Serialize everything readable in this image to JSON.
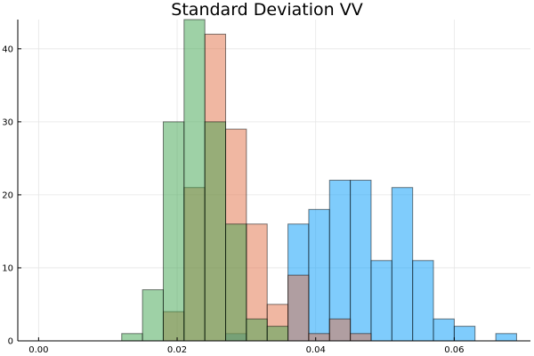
{
  "chart_data": {
    "type": "bar",
    "title": "Standard Deviation VV",
    "xlabel": "",
    "ylabel": "",
    "xlim": [
      -0.003,
      0.071
    ],
    "ylim": [
      0,
      44
    ],
    "bin_width": 0.003,
    "x_ticks": [
      0.0,
      0.02,
      0.04,
      0.06
    ],
    "x_tick_labels": [
      "0.00",
      "0.02",
      "0.04",
      "0.06"
    ],
    "y_ticks": [
      0,
      10,
      20,
      30,
      40
    ],
    "y_tick_labels": [
      "0",
      "10",
      "20",
      "30",
      "40"
    ],
    "grid": true,
    "legend": "none",
    "series": [
      {
        "color": "#009af9",
        "bins": [
          {
            "x0": 0.0,
            "value": 0
          },
          {
            "x0": 0.003,
            "value": 0
          },
          {
            "x0": 0.006,
            "value": 0
          },
          {
            "x0": 0.009,
            "value": 0
          },
          {
            "x0": 0.012,
            "value": 0
          },
          {
            "x0": 0.015,
            "value": 0
          },
          {
            "x0": 0.018,
            "value": 0
          },
          {
            "x0": 0.021,
            "value": 0
          },
          {
            "x0": 0.024,
            "value": 0
          },
          {
            "x0": 0.027,
            "value": 1
          },
          {
            "x0": 0.03,
            "value": 0
          },
          {
            "x0": 0.033,
            "value": 0
          },
          {
            "x0": 0.036,
            "value": 16
          },
          {
            "x0": 0.039,
            "value": 18
          },
          {
            "x0": 0.042,
            "value": 22
          },
          {
            "x0": 0.045,
            "value": 22
          },
          {
            "x0": 0.048,
            "value": 11
          },
          {
            "x0": 0.051,
            "value": 21
          },
          {
            "x0": 0.054,
            "value": 11
          },
          {
            "x0": 0.057,
            "value": 3
          },
          {
            "x0": 0.06,
            "value": 2
          },
          {
            "x0": 0.063,
            "value": 0
          },
          {
            "x0": 0.066,
            "value": 1
          }
        ]
      },
      {
        "color": "#e26f46",
        "bins": [
          {
            "x0": 0.018,
            "value": 4
          },
          {
            "x0": 0.021,
            "value": 21
          },
          {
            "x0": 0.024,
            "value": 42
          },
          {
            "x0": 0.027,
            "value": 29
          },
          {
            "x0": 0.03,
            "value": 16
          },
          {
            "x0": 0.033,
            "value": 5
          },
          {
            "x0": 0.036,
            "value": 9
          },
          {
            "x0": 0.039,
            "value": 1
          },
          {
            "x0": 0.042,
            "value": 3
          },
          {
            "x0": 0.045,
            "value": 1
          }
        ]
      },
      {
        "color": "#3da44d",
        "bins": [
          {
            "x0": 0.012,
            "value": 1
          },
          {
            "x0": 0.015,
            "value": 7
          },
          {
            "x0": 0.018,
            "value": 30
          },
          {
            "x0": 0.021,
            "value": 44
          },
          {
            "x0": 0.024,
            "value": 30
          },
          {
            "x0": 0.027,
            "value": 16
          },
          {
            "x0": 0.03,
            "value": 3
          },
          {
            "x0": 0.033,
            "value": 2
          },
          {
            "x0": 0.036,
            "value": 0
          }
        ]
      }
    ]
  }
}
